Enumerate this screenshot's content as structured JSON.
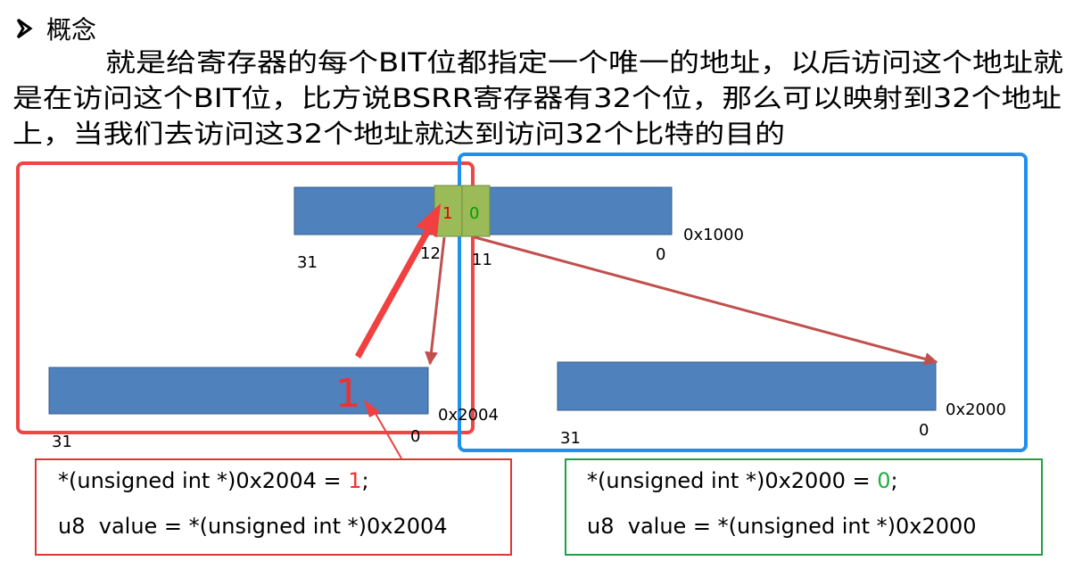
{
  "heading": "概念",
  "paragraph": [
    "就是给寄存器的每个BIT位都指定一个唯一的地址，以后访问这个地址就",
    "是在访问这个BIT位，比方说BSRR寄存器有32个位，那么可以映射到32个地址",
    "上，当我们去访问这32个地址就达到访问32个比特的目的"
  ],
  "top_register": {
    "bit_high": "1",
    "bit_low": "0",
    "msb": "31",
    "bit12": "12",
    "bit11": "11",
    "lsb": "0",
    "address": "0x1000"
  },
  "left_alias": {
    "value": "1",
    "msb": "31",
    "lsb": "0",
    "address": "0x2004"
  },
  "right_alias": {
    "msb": "31",
    "lsb": "0",
    "address": "0x2000"
  },
  "left_code": {
    "line1": {
      "prefix": "*(unsigned int *)0x2004 = ",
      "value": "1",
      "suffix": ";"
    },
    "line2": "u8  value = *(unsigned int *)0x2004"
  },
  "right_code": {
    "line1": {
      "prefix": "*(unsigned int *)0x2000 = ",
      "value": "0",
      "suffix": ";"
    },
    "line2": "u8  value = *(unsigned int *)0x2000"
  }
}
